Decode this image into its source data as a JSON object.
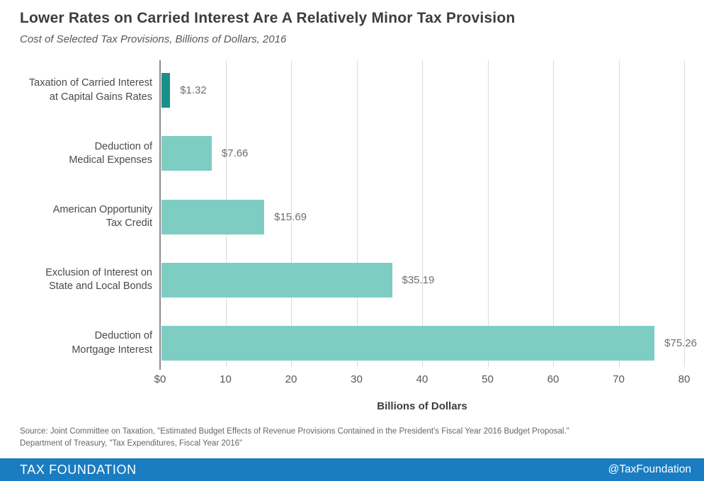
{
  "header": {
    "title": "Lower Rates on Carried Interest Are A Relatively Minor Tax Provision",
    "subtitle": "Cost of Selected Tax Provisions, Billions of Dollars, 2016"
  },
  "chart_data": {
    "type": "bar",
    "orientation": "horizontal",
    "title": "Lower Rates on Carried Interest Are A Relatively Minor Tax Provision",
    "subtitle": "Cost of Selected Tax Provisions, Billions of Dollars, 2016",
    "categories": [
      "Taxation of Carried Interest\nat Capital Gains Rates",
      "Deduction of\nMedical Expenses",
      "American Opportunity\nTax Credit",
      "Exclusion of Interest on\nState and Local Bonds",
      "Deduction of\nMortgage Interest"
    ],
    "values": [
      1.32,
      7.66,
      15.69,
      35.19,
      75.26
    ],
    "value_labels": [
      "$1.32",
      "$7.66",
      "$15.69",
      "$35.19",
      "$75.26"
    ],
    "xlabel": "Billions of Dollars",
    "xlim": [
      0,
      80
    ],
    "xticks": [
      0,
      10,
      20,
      30,
      40,
      50,
      60,
      70,
      80
    ],
    "xtick_labels": [
      "$0",
      "10",
      "20",
      "30",
      "40",
      "50",
      "60",
      "70",
      "80"
    ],
    "grid": "vertical",
    "legend": "none",
    "bar_colors": [
      "#1a9188",
      "#7ecdc3",
      "#7ecdc3",
      "#7ecdc3",
      "#7ecdc3"
    ]
  },
  "colors": {
    "bar_highlight": "#1a9188",
    "bar_normal": "#7ecdc3",
    "footer_bg": "#1a7cc1",
    "gridline": "#dadada",
    "axis_line": "#8c8c8c"
  },
  "source": {
    "line1": "Source: Joint Committee on Taxation, \"Estimated Budget Effects of Revenue Provisions Contained in the President's Fiscal Year 2016 Budget Proposal.\"",
    "line2": "Department of Treasury, \"Tax Expenditures, Fiscal Year 2016\""
  },
  "footer": {
    "brand": "TAX FOUNDATION",
    "handle": "@TaxFoundation"
  }
}
